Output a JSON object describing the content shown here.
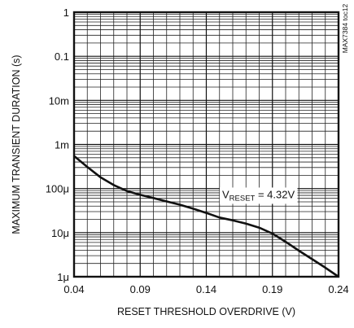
{
  "chart_data": {
    "type": "line",
    "xlabel": "RESET THRESHOLD OVERDRIVE (V)",
    "ylabel": "MAXIMUM TRANSIENT DURATION (s)",
    "xlim": [
      0.04,
      0.24
    ],
    "ylim": [
      1e-06,
      1
    ],
    "yscale": "log",
    "grid": true,
    "x_ticks": [
      0.04,
      0.09,
      0.14,
      0.19,
      0.24
    ],
    "x_tick_labels": [
      "0.04",
      "0.09",
      "0.14",
      "0.19",
      "0.24"
    ],
    "y_ticks": [
      1e-06,
      1e-05,
      0.0001,
      0.001,
      0.01,
      0.1,
      1
    ],
    "y_tick_labels": [
      "1μ",
      "10μ",
      "100μ",
      "1m",
      "10m",
      "0.1",
      "1"
    ],
    "series": [
      {
        "x": [
          0.04,
          0.05,
          0.06,
          0.07,
          0.08,
          0.09,
          0.1,
          0.11,
          0.12,
          0.13,
          0.14,
          0.15,
          0.16,
          0.17,
          0.18,
          0.19,
          0.2,
          0.21,
          0.22,
          0.23,
          0.24
        ],
        "y": [
          0.00055,
          0.00031,
          0.00018,
          0.00012,
          8.8e-05,
          7.2e-05,
          6.1e-05,
          5.1e-05,
          4.3e-05,
          3.5e-05,
          2.8e-05,
          2.2e-05,
          1.9e-05,
          1.6e-05,
          1.3e-05,
          9.5e-06,
          6.2e-06,
          3.9e-06,
          2.5e-06,
          1.6e-06,
          1e-06
        ]
      }
    ],
    "annotation": {
      "prefix": "V",
      "subscript": "RESET",
      "suffix": " = 4.32V"
    },
    "code_label": "MAX7384 toc12"
  }
}
